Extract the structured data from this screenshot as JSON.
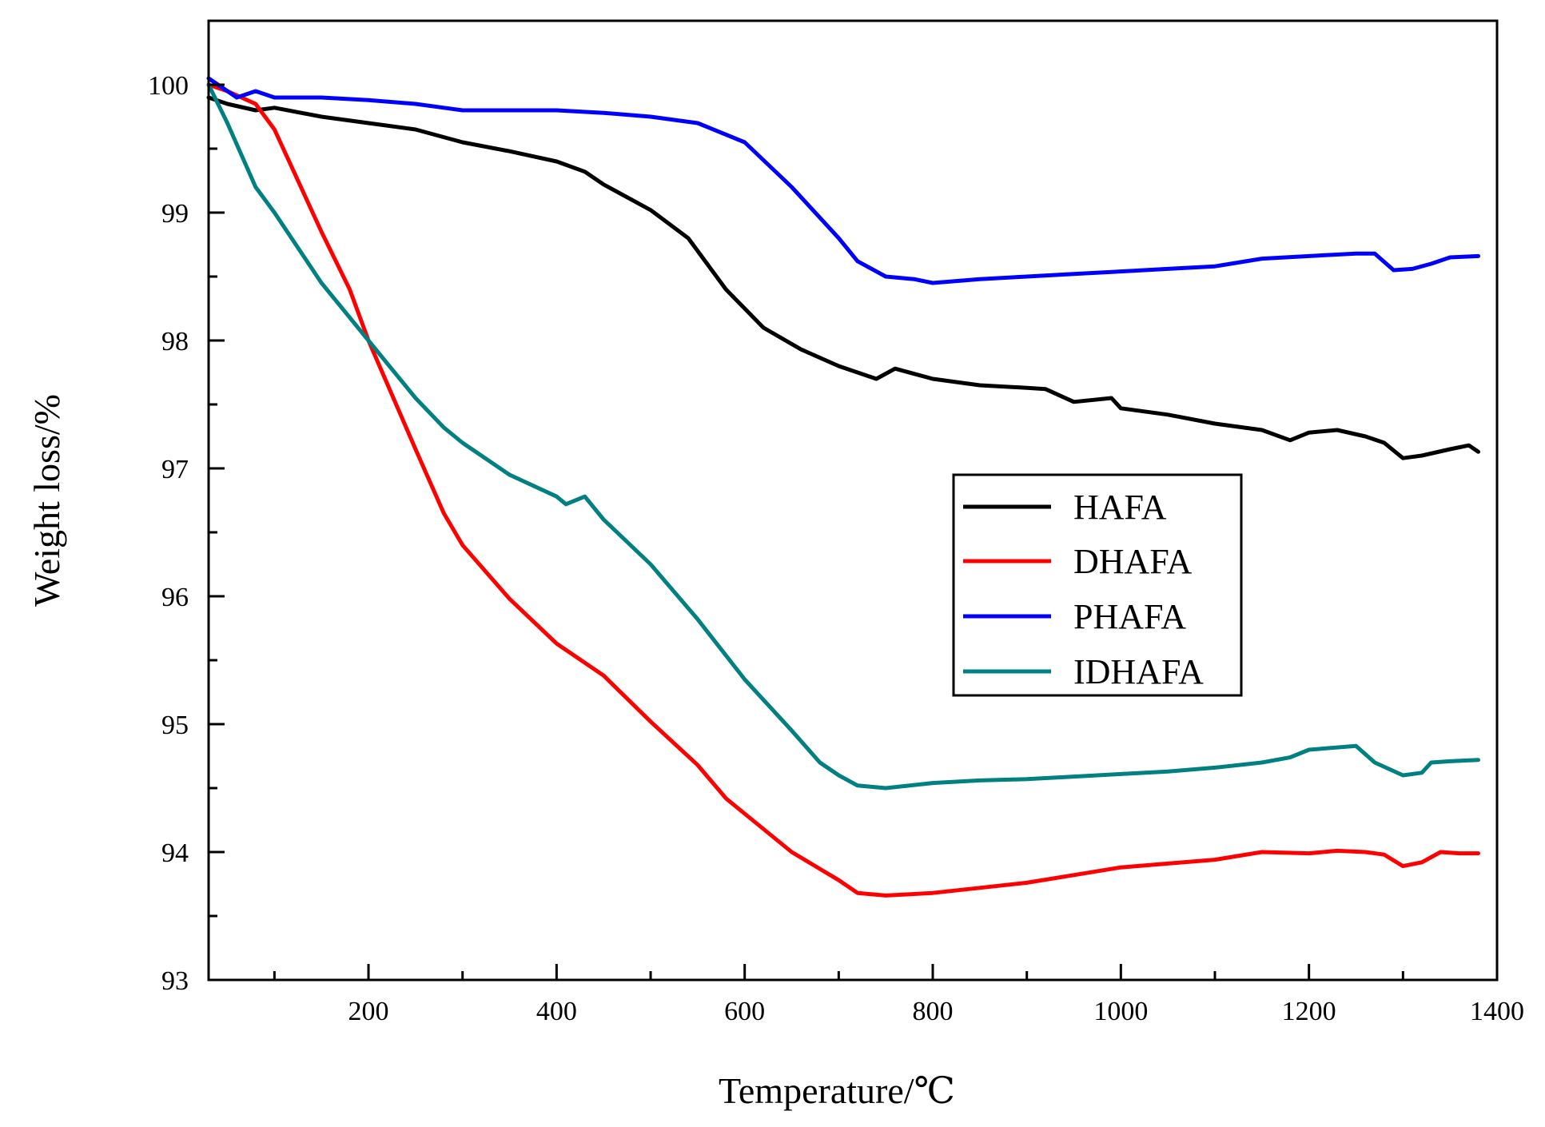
{
  "chart_data": {
    "type": "line",
    "title": "",
    "xlabel": "Temperature/℃",
    "ylabel": "Weight loss/%",
    "xlim": [
      30,
      1400
    ],
    "ylim": [
      93,
      100.5
    ],
    "xticks": [
      200,
      400,
      600,
      800,
      1000,
      1200,
      1400
    ],
    "xtick_labels": [
      "200",
      "400",
      "600",
      "800",
      "1000",
      "1200",
      "1400"
    ],
    "yticks": [
      93,
      94,
      95,
      96,
      97,
      98,
      99,
      100
    ],
    "ytick_labels": [
      "93",
      "94",
      "95",
      "96",
      "97",
      "98",
      "99",
      "100"
    ],
    "grid": false,
    "legend_position": "right-center",
    "series": [
      {
        "name": "HAFA",
        "color": "#000000",
        "x": [
          30,
          50,
          80,
          100,
          150,
          200,
          250,
          300,
          350,
          400,
          430,
          450,
          500,
          540,
          580,
          620,
          660,
          700,
          740,
          760,
          800,
          850,
          900,
          920,
          950,
          990,
          1000,
          1050,
          1100,
          1150,
          1180,
          1200,
          1230,
          1260,
          1280,
          1300,
          1320,
          1350,
          1370,
          1380
        ],
        "y": [
          99.9,
          99.85,
          99.8,
          99.82,
          99.75,
          99.7,
          99.65,
          99.55,
          99.48,
          99.4,
          99.32,
          99.22,
          99.02,
          98.8,
          98.4,
          98.1,
          97.93,
          97.8,
          97.7,
          97.78,
          97.7,
          97.65,
          97.63,
          97.62,
          97.52,
          97.55,
          97.47,
          97.42,
          97.35,
          97.3,
          97.22,
          97.28,
          97.3,
          97.25,
          97.2,
          97.08,
          97.1,
          97.15,
          97.18,
          97.13
        ]
      },
      {
        "name": "DHAFA",
        "color": "#ff0000",
        "x": [
          30,
          50,
          80,
          100,
          150,
          180,
          200,
          250,
          280,
          300,
          350,
          400,
          450,
          500,
          550,
          580,
          600,
          650,
          700,
          720,
          750,
          800,
          850,
          900,
          950,
          1000,
          1050,
          1100,
          1150,
          1200,
          1230,
          1260,
          1280,
          1300,
          1320,
          1340,
          1360,
          1380
        ],
        "y": [
          100.0,
          99.95,
          99.85,
          99.65,
          98.85,
          98.4,
          98.0,
          97.15,
          96.65,
          96.4,
          95.98,
          95.63,
          95.38,
          95.02,
          94.68,
          94.42,
          94.3,
          94.0,
          93.78,
          93.68,
          93.66,
          93.68,
          93.72,
          93.76,
          93.82,
          93.88,
          93.91,
          93.94,
          94.0,
          93.99,
          94.01,
          94.0,
          93.98,
          93.89,
          93.92,
          94.0,
          93.99,
          93.99
        ]
      },
      {
        "name": "PHAFA",
        "color": "#0000ff",
        "x": [
          30,
          60,
          80,
          100,
          150,
          200,
          250,
          280,
          300,
          350,
          400,
          450,
          500,
          550,
          600,
          650,
          700,
          720,
          750,
          780,
          800,
          850,
          900,
          950,
          1000,
          1050,
          1100,
          1150,
          1200,
          1250,
          1270,
          1290,
          1310,
          1330,
          1350,
          1380
        ],
        "y": [
          100.05,
          99.9,
          99.95,
          99.9,
          99.9,
          99.88,
          99.85,
          99.82,
          99.8,
          99.8,
          99.8,
          99.78,
          99.75,
          99.7,
          99.55,
          99.2,
          98.8,
          98.62,
          98.5,
          98.48,
          98.45,
          98.48,
          98.5,
          98.52,
          98.54,
          98.56,
          98.58,
          98.64,
          98.66,
          98.68,
          98.68,
          98.55,
          98.56,
          98.6,
          98.65,
          98.66
        ]
      },
      {
        "name": "IDHAFA",
        "color": "#008080",
        "x": [
          30,
          50,
          80,
          100,
          150,
          200,
          250,
          280,
          300,
          350,
          400,
          410,
          430,
          450,
          500,
          550,
          600,
          650,
          680,
          700,
          720,
          750,
          800,
          850,
          900,
          950,
          1000,
          1050,
          1100,
          1150,
          1180,
          1200,
          1250,
          1270,
          1300,
          1320,
          1330,
          1350,
          1380
        ],
        "y": [
          100.0,
          99.7,
          99.2,
          99.0,
          98.45,
          98.0,
          97.55,
          97.32,
          97.2,
          96.95,
          96.78,
          96.72,
          96.78,
          96.6,
          96.25,
          95.82,
          95.35,
          94.95,
          94.7,
          94.6,
          94.52,
          94.5,
          94.54,
          94.56,
          94.57,
          94.59,
          94.61,
          94.63,
          94.66,
          94.7,
          94.74,
          94.8,
          94.83,
          94.7,
          94.6,
          94.62,
          94.7,
          94.71,
          94.72
        ]
      }
    ]
  }
}
